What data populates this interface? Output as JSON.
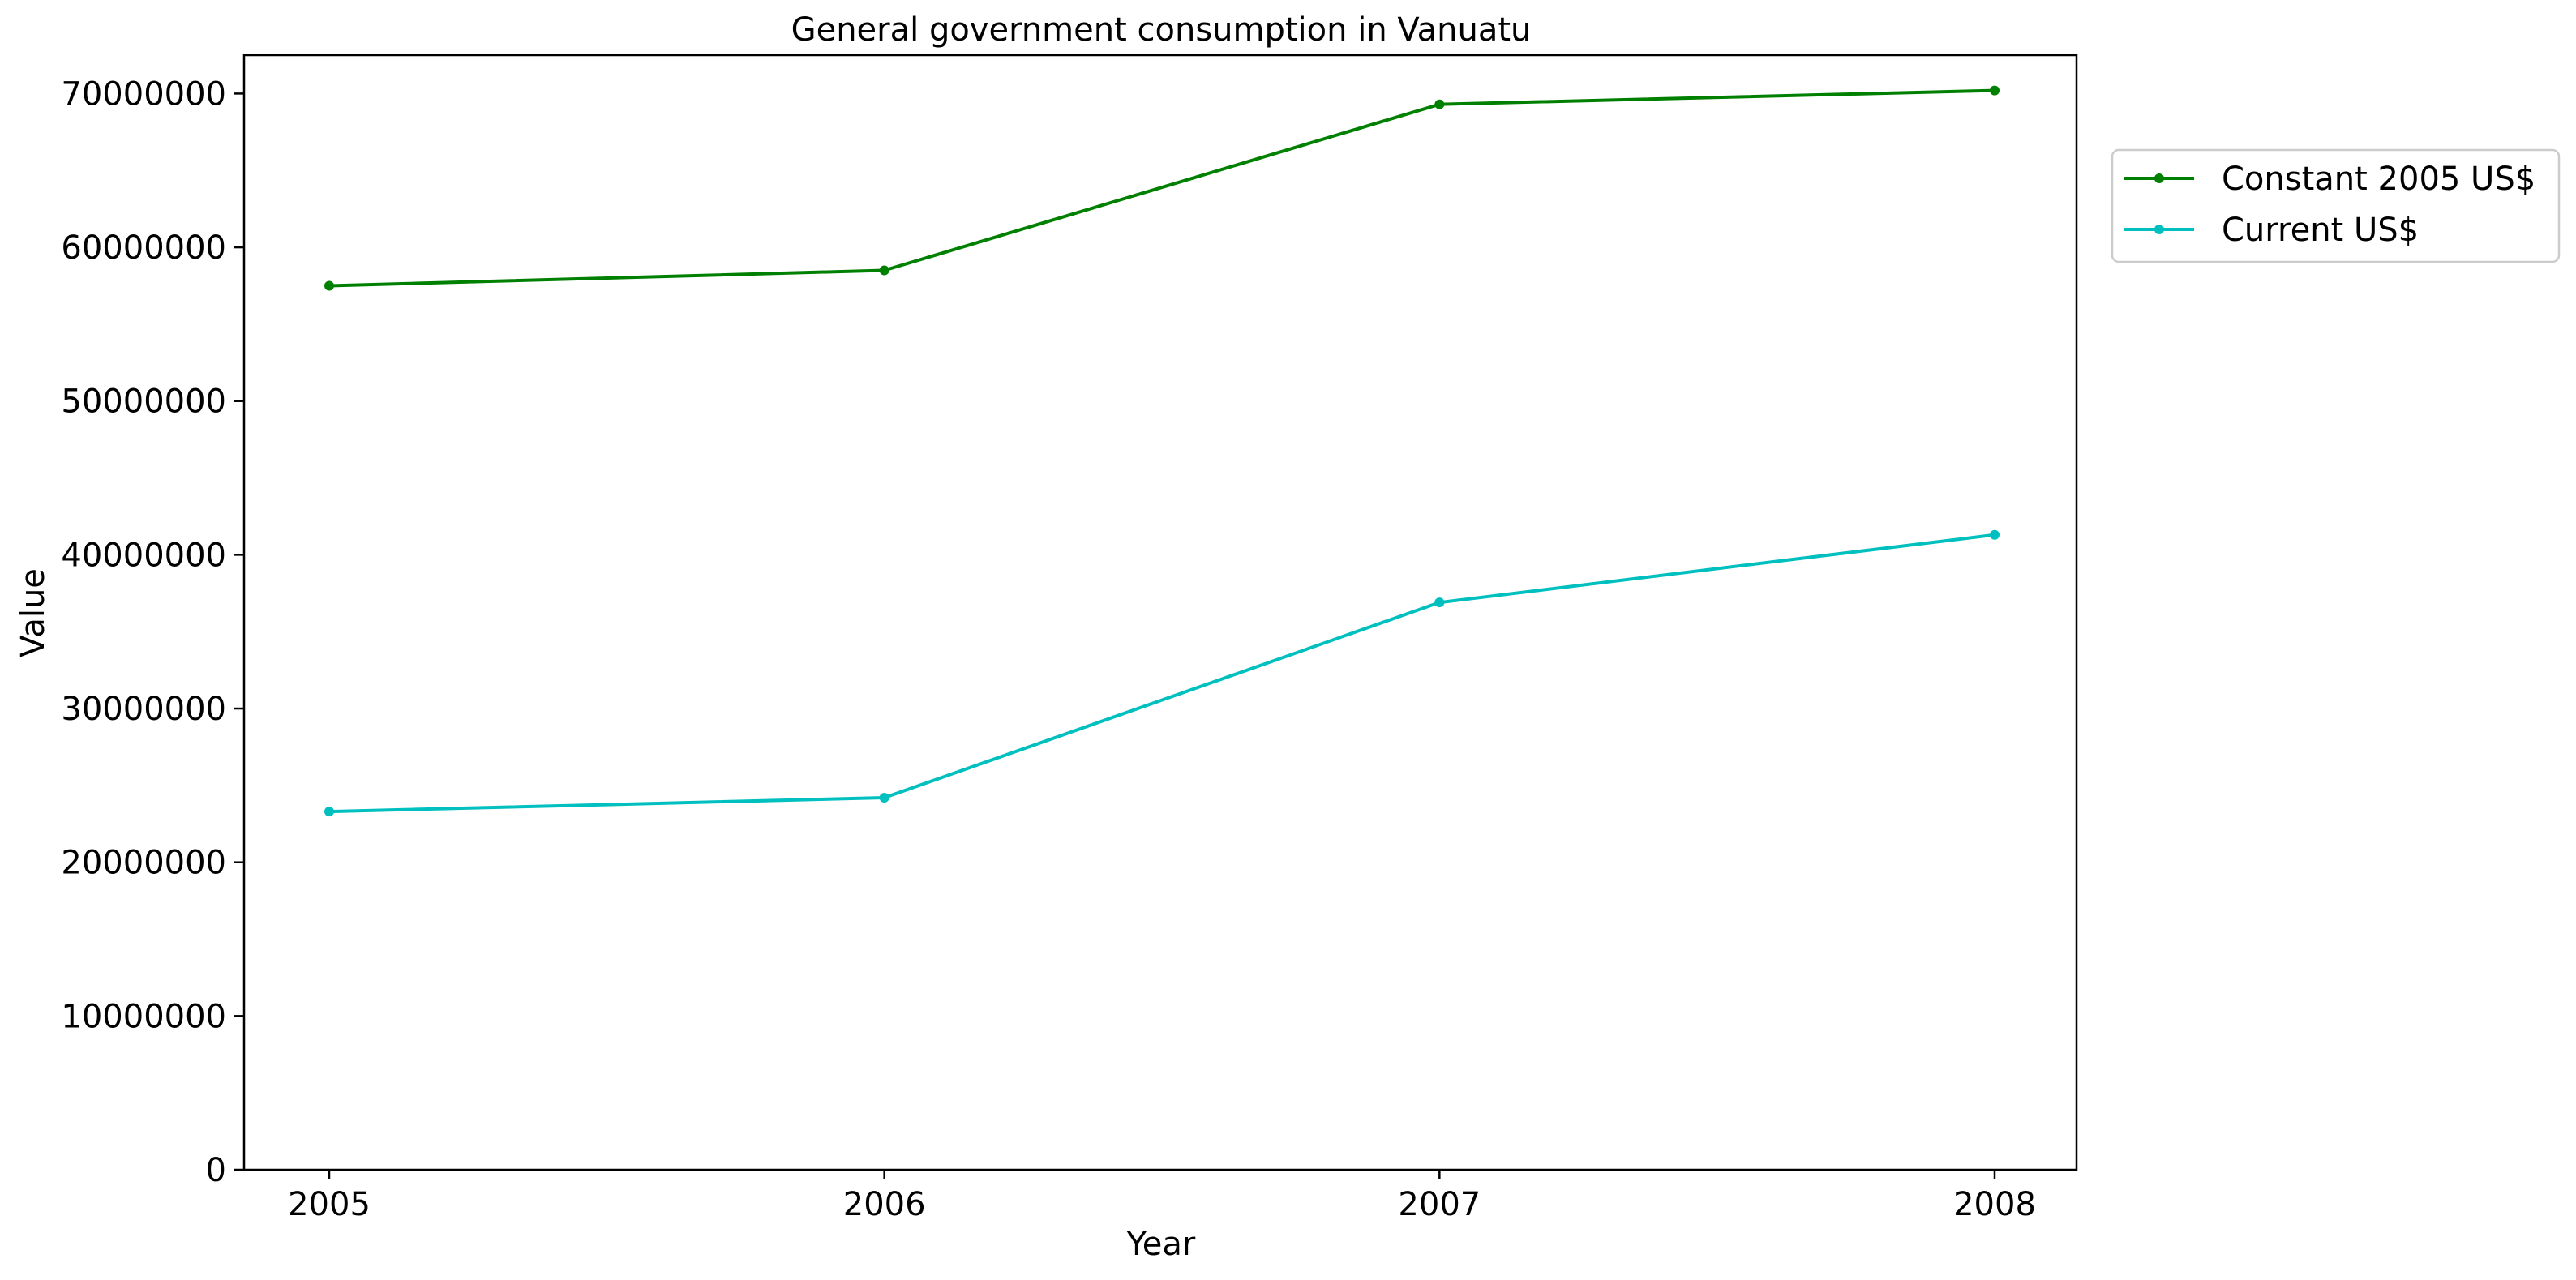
{
  "chart_data": {
    "type": "line",
    "title": "General government consumption in Vanuatu",
    "xlabel": "Year",
    "ylabel": "Value",
    "x": [
      2005,
      2006,
      2007,
      2008
    ],
    "x_tick_labels": [
      "2005",
      "2006",
      "2007",
      "2008"
    ],
    "ylim": [
      0,
      72500000
    ],
    "y_ticks": [
      0,
      10000000,
      20000000,
      30000000,
      40000000,
      50000000,
      60000000,
      70000000
    ],
    "y_tick_labels": [
      "0",
      "10000000",
      "20000000",
      "30000000",
      "40000000",
      "50000000",
      "60000000",
      "70000000"
    ],
    "grid": false,
    "legend_position": "upper right outside plot",
    "series": [
      {
        "name": "Constant 2005 US$",
        "color": "#008000",
        "values": [
          57500000,
          58500000,
          69300000,
          70200000
        ]
      },
      {
        "name": "Current US$",
        "color": "#00BFBF",
        "values": [
          23300000,
          24200000,
          36900000,
          41300000
        ]
      }
    ]
  }
}
